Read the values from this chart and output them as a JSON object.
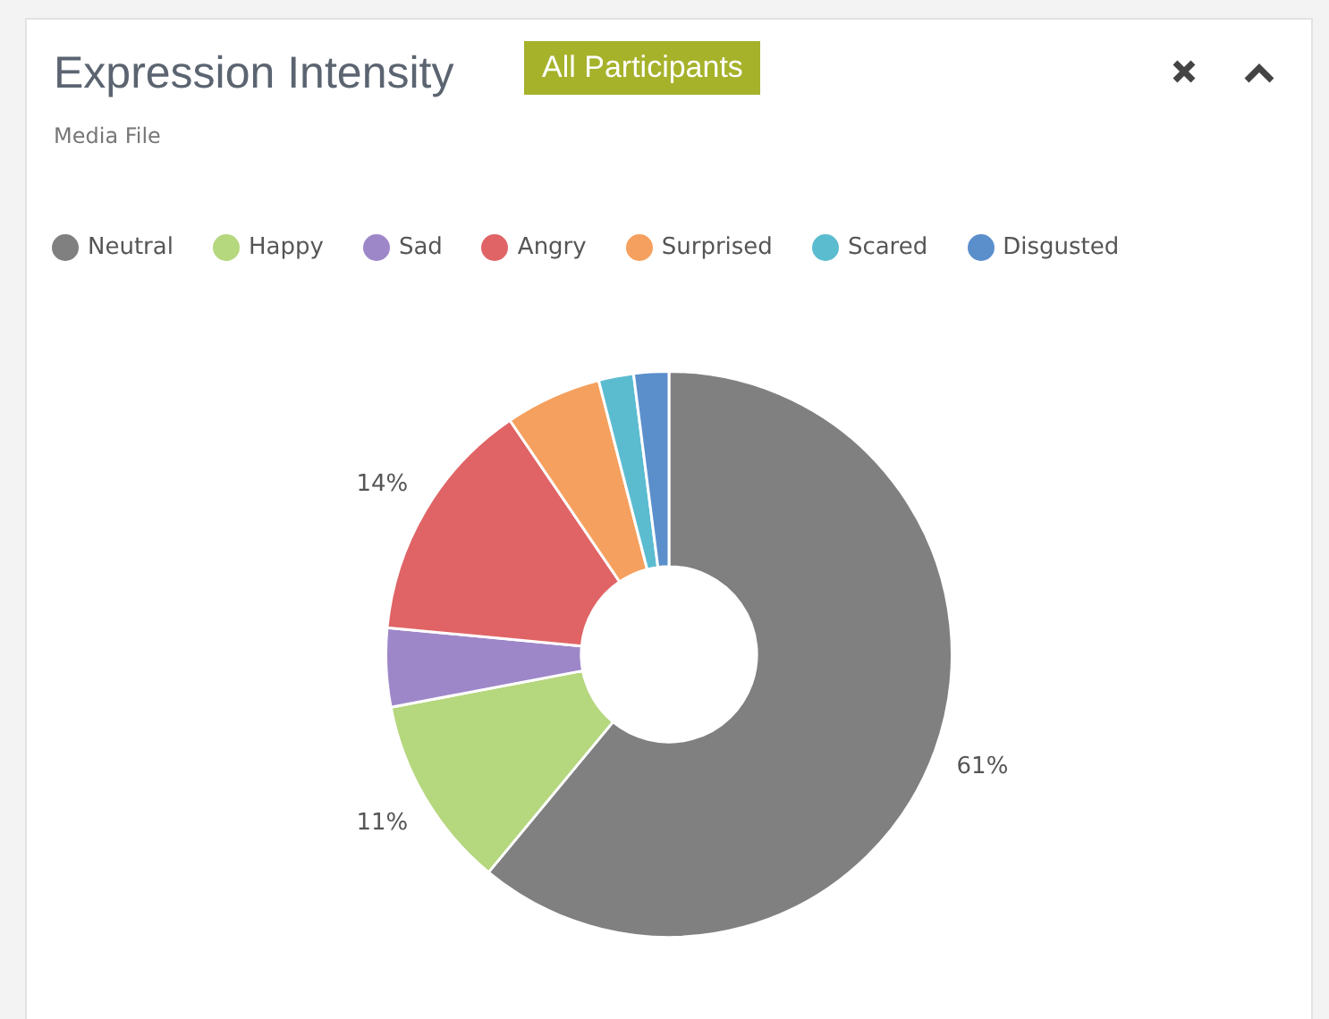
{
  "chart_data": {
    "type": "donut",
    "title": "Expression Intensity",
    "subtitle": "Media File",
    "annotations": [
      "All Participants"
    ],
    "categories": [
      "Neutral",
      "Happy",
      "Sad",
      "Angry",
      "Surprised",
      "Scared",
      "Disgusted"
    ],
    "values": [
      61,
      11,
      4.5,
      14,
      5.5,
      2,
      2
    ],
    "colors": [
      "#808080",
      "#b5d77e",
      "#9e87c9",
      "#e06466",
      "#f5a05e",
      "#5bbcd0",
      "#5b8fcc"
    ],
    "value_labels": [
      "61%",
      "11%",
      null,
      "14%",
      null,
      null,
      null
    ],
    "legend": "top"
  }
}
